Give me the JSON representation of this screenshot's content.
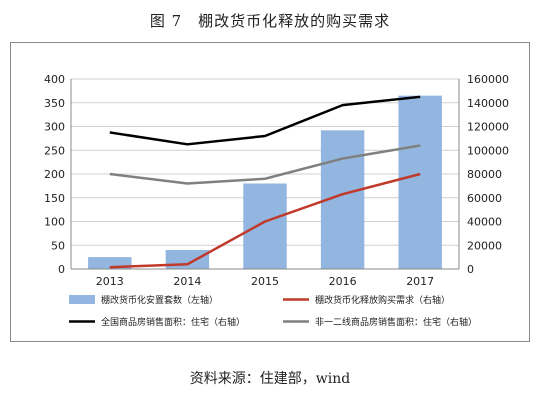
{
  "figure": {
    "title": "图 7　棚改货币化释放的购买需求",
    "source": "资料来源：住建部，wind"
  },
  "chart_data": {
    "type": "bar",
    "categories": [
      "2013",
      "2014",
      "2015",
      "2016",
      "2017"
    ],
    "left_axis": {
      "min": 0,
      "max": 400,
      "step": 50,
      "ticks": [
        "0",
        "50",
        "100",
        "150",
        "200",
        "250",
        "300",
        "350",
        "400"
      ]
    },
    "right_axis": {
      "min": 0,
      "max": 160000,
      "step": 20000,
      "ticks": [
        "0",
        "20000",
        "40000",
        "60000",
        "80000",
        "100000",
        "120000",
        "140000",
        "160000"
      ]
    },
    "series": [
      {
        "name": "棚改货币化安置套数（左轴）",
        "kind": "bar",
        "axis": "left",
        "color": "#92b6e0",
        "values": [
          25,
          40,
          180,
          292,
          365
        ]
      },
      {
        "name": "棚改货币化释放购买需求（右轴）",
        "kind": "line",
        "axis": "right",
        "color": "#c0392b",
        "values": [
          1500,
          4000,
          40000,
          63000,
          80000
        ]
      },
      {
        "name": "全国商品房销售面积：住宅（右轴）",
        "kind": "line",
        "axis": "right",
        "color": "#000000",
        "values": [
          115000,
          105000,
          112000,
          138000,
          145000
        ]
      },
      {
        "name": "非一二线商品房销售面积：住宅（右轴）",
        "kind": "line",
        "axis": "right",
        "color": "#808080",
        "values": [
          80000,
          72000,
          76000,
          93000,
          104000
        ]
      }
    ],
    "grid": "horizontal",
    "legend_position": "bottom"
  }
}
